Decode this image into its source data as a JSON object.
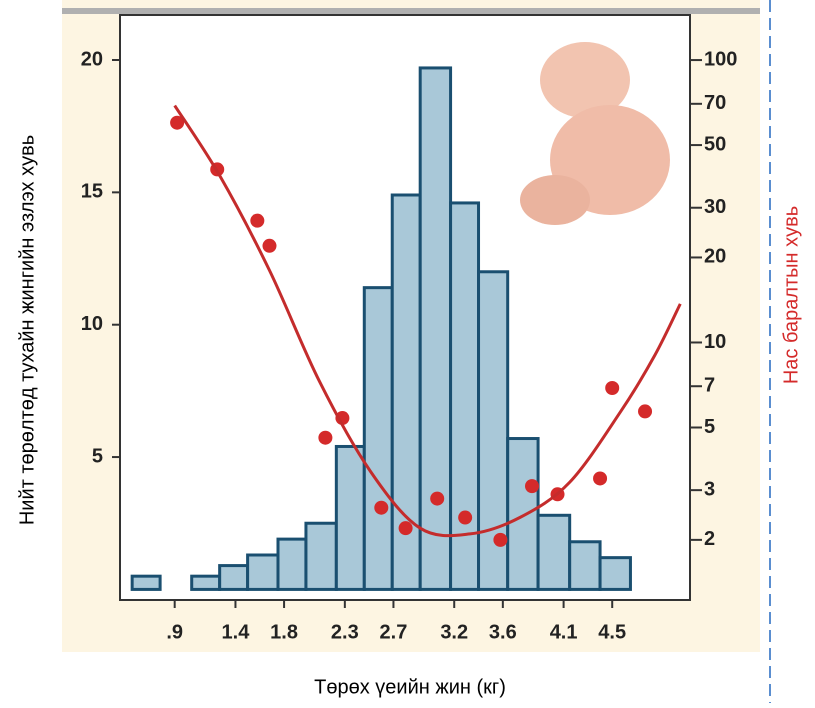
{
  "chart_data": {
    "type": "histogram",
    "x_label": "Төрөх үеийн жин (кг)",
    "y_label": "Нийт төрөлтөд тухайн жингийн эзлэх  хувь",
    "y2_label": "Нас баралтын хувь",
    "bins": [
      0.55,
      0.78,
      1.04,
      1.27,
      1.5,
      1.75,
      1.98,
      2.23,
      2.46,
      2.69,
      2.92,
      3.17,
      3.4,
      3.64,
      3.89,
      4.15,
      4.4,
      4.65
    ],
    "values": [
      0.5,
      0,
      0.5,
      0.9,
      1.3,
      1.9,
      2.5,
      5.4,
      11.4,
      14.9,
      19.7,
      14.6,
      12.0,
      5.7,
      2.8,
      1.8,
      1.2
    ],
    "color": "#a9c8d8",
    "edge_color": "#1a4f70",
    "xlim": [
      0.45,
      5.14
    ],
    "xticks": [
      {
        "value": 0.9,
        "label": ".9"
      },
      1.4,
      1.8,
      2.3,
      2.7,
      3.2,
      3.6,
      4.1,
      4.5
    ],
    "ylim": [
      -0.4,
      21.7
    ],
    "yticks": [
      5,
      10,
      15,
      20
    ],
    "y2lim": [
      1.225,
      144.4
    ],
    "y2scale": "log",
    "y2ticks": [
      2,
      3,
      5,
      7,
      10,
      20,
      30,
      50,
      70,
      100
    ],
    "series": [
      {
        "type": "scatter",
        "axis": "y2",
        "color": "#d42a2a",
        "x": [
          0.92,
          1.25,
          1.58,
          1.68,
          2.14,
          2.28,
          2.6,
          2.8,
          3.06,
          3.29,
          3.58,
          3.84,
          4.05,
          4.4,
          4.5,
          4.77
        ],
        "values": [
          60,
          41,
          27,
          22,
          4.6,
          5.4,
          2.6,
          2.2,
          2.8,
          2.4,
          2.0,
          3.1,
          2.9,
          3.3,
          6.9,
          5.7
        ]
      },
      {
        "type": "line",
        "axis": "y2",
        "color": "#c42c2c",
        "x": [
          0.9,
          1.27,
          1.68,
          2.09,
          2.51,
          2.92,
          3.33,
          3.74,
          4.15,
          4.57,
          4.85,
          5.06
        ],
        "values": [
          69,
          39,
          18,
          7.3,
          3.5,
          2.2,
          2.1,
          2.4,
          3.2,
          5.7,
          9.0,
          13.7
        ]
      }
    ]
  }
}
